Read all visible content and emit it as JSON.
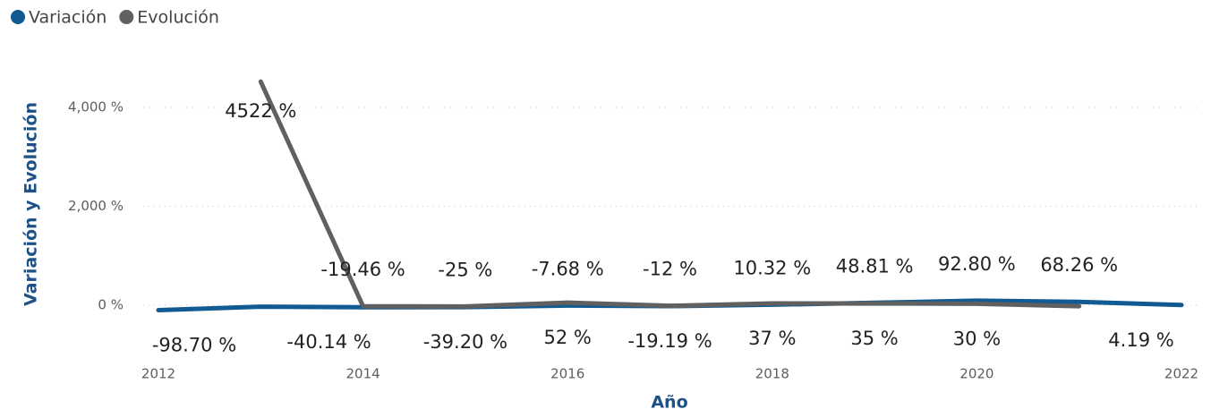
{
  "chart_data": {
    "type": "line",
    "x_label": "Año",
    "y_label": "Variación y Evolución",
    "x": [
      2012,
      2013,
      2014,
      2015,
      2016,
      2017,
      2018,
      2019,
      2020,
      2021,
      2022
    ],
    "series": [
      {
        "name": "Variación",
        "color": "#115a92",
        "values": [
          -98.7,
          -30,
          -40.14,
          -39.2,
          -7.68,
          -19.19,
          10.32,
          48.81,
          92.8,
          68.26,
          4.19
        ],
        "value_labels": [
          "-98.70 %",
          null,
          "-40.14 %",
          "-39.20 %",
          "-7.68 %",
          "-19.19 %",
          "10.32 %",
          "48.81 %",
          "92.80 %",
          "68.26 %",
          "4.19 %"
        ]
      },
      {
        "name": "Evolución",
        "color": "#606060",
        "values": [
          null,
          4522,
          -19.46,
          -25,
          52,
          -12,
          37,
          35,
          30,
          -20,
          null
        ],
        "value_labels": [
          null,
          "4522 %",
          "-19.46 %",
          "-25 %",
          "52 %",
          "-12 %",
          "37 %",
          "35 %",
          "30 %",
          null,
          null
        ]
      }
    ],
    "xlim": [
      2012,
      2022
    ],
    "xticks": [
      2012,
      2014,
      2016,
      2018,
      2020,
      2022
    ],
    "ylim": [
      -300,
      4700
    ],
    "yticks": [
      {
        "value": 0,
        "label": "0 %"
      },
      {
        "value": 2000,
        "label": "2,000 %"
      },
      {
        "value": 4000,
        "label": "4,000 %"
      }
    ],
    "grid": true,
    "legend": "top-left"
  }
}
